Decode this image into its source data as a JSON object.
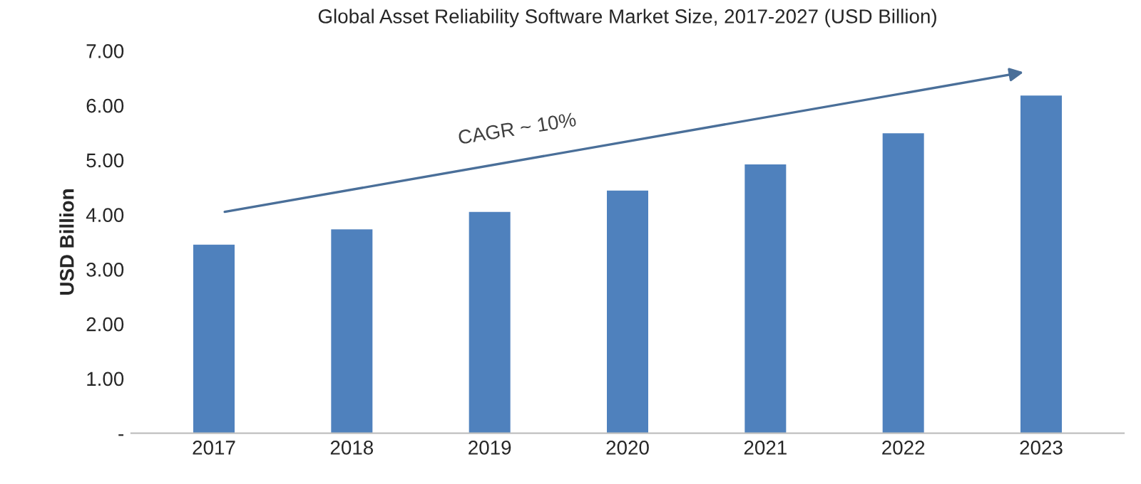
{
  "chart_data": {
    "type": "bar",
    "title": "Global Asset Reliability Software Market Size, 2017-2027 (USD Billion)",
    "ylabel": "USD Billion",
    "categories": [
      "2017",
      "2018",
      "2019",
      "2020",
      "2021",
      "2022",
      "2023"
    ],
    "values": [
      3.45,
      3.73,
      4.05,
      4.44,
      4.92,
      5.49,
      6.18
    ],
    "color": "#4f81bd",
    "ylim": [
      0,
      7
    ],
    "yticks": [
      {
        "value": 0,
        "label": "-"
      },
      {
        "value": 1,
        "label": "1.00"
      },
      {
        "value": 2,
        "label": "2.00"
      },
      {
        "value": 3,
        "label": "3.00"
      },
      {
        "value": 4,
        "label": "4.00"
      },
      {
        "value": 5,
        "label": "5.00"
      },
      {
        "value": 6,
        "label": "6.00"
      },
      {
        "value": 7,
        "label": "7.00"
      }
    ],
    "grid": false,
    "annotations": [
      "CAGR ~ 10%"
    ]
  }
}
